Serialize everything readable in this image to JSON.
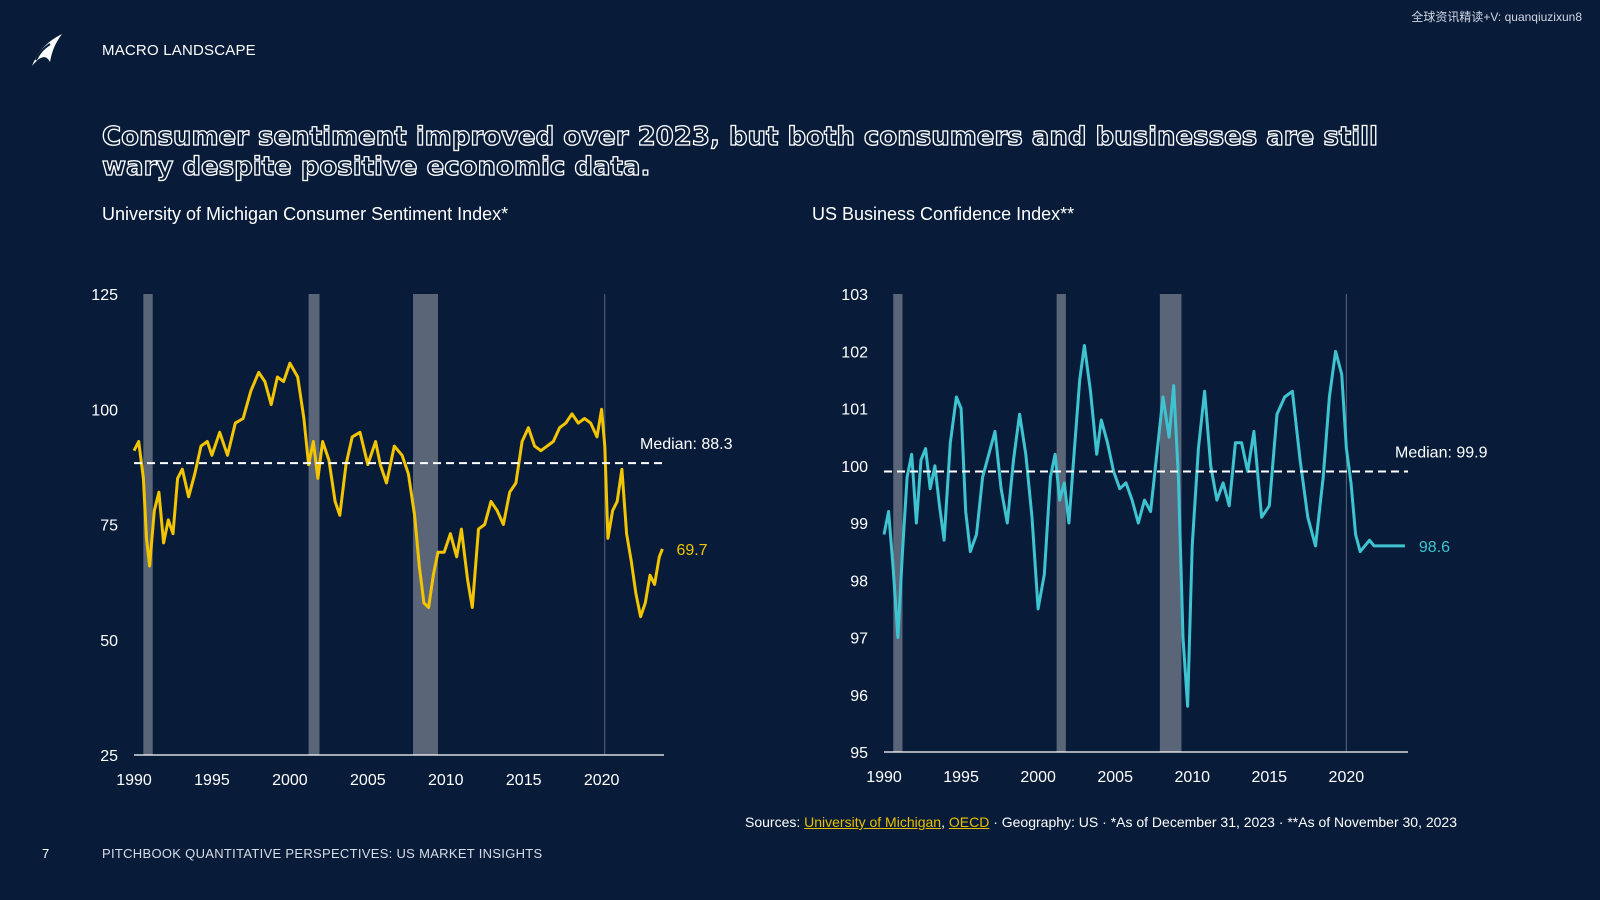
{
  "header": {
    "section": "MACRO LANDSCAPE",
    "watermark": "全球资讯精读+V: quanqiuzixun8"
  },
  "headline": "Consumer sentiment improved over 2023, but both consumers and businesses are still wary despite positive economic data.",
  "chart_data": [
    {
      "type": "line",
      "title": "University of Michigan Consumer Sentiment Index*",
      "color": "#f2c500",
      "xlim": [
        1990,
        2024
      ],
      "ylim": [
        25,
        125
      ],
      "yticks": [
        25,
        50,
        75,
        100,
        125
      ],
      "xticks": [
        1990,
        1995,
        2000,
        2005,
        2010,
        2015,
        2020
      ],
      "median": 88.3,
      "median_label": "Median: 88.3",
      "last_value_label": "69.7",
      "recessions": [
        [
          1990.6,
          1991.2
        ],
        [
          2001.2,
          2001.9
        ],
        [
          2007.9,
          2009.5
        ]
      ],
      "vline": 2020.2,
      "series": [
        {
          "x": [
            1990.0,
            1990.3,
            1990.6,
            1990.8,
            1991.0,
            1991.3,
            1991.6,
            1991.9,
            1992.2,
            1992.5,
            1992.8,
            1993.1,
            1993.5,
            1993.9,
            1994.3,
            1994.7,
            1995.0,
            1995.5,
            1996.0,
            1996.5,
            1997.0,
            1997.5,
            1998.0,
            1998.4,
            1998.8,
            1999.2,
            1999.6,
            2000.0,
            2000.5,
            2000.9,
            2001.2,
            2001.5,
            2001.8,
            2002.1,
            2002.5,
            2002.9,
            2003.2,
            2003.6,
            2004.0,
            2004.5,
            2005.0,
            2005.5,
            2005.8,
            2006.2,
            2006.7,
            2007.2,
            2007.6,
            2008.0,
            2008.3,
            2008.6,
            2008.9,
            2009.2,
            2009.5,
            2009.9,
            2010.3,
            2010.7,
            2011.0,
            2011.4,
            2011.7,
            2012.1,
            2012.5,
            2012.9,
            2013.3,
            2013.7,
            2014.1,
            2014.5,
            2014.9,
            2015.3,
            2015.7,
            2016.1,
            2016.5,
            2016.9,
            2017.3,
            2017.7,
            2018.1,
            2018.5,
            2018.9,
            2019.3,
            2019.7,
            2020.0,
            2020.2,
            2020.4,
            2020.7,
            2021.0,
            2021.3,
            2021.6,
            2021.9,
            2022.2,
            2022.5,
            2022.8,
            2023.1,
            2023.4,
            2023.7,
            2023.9
          ],
          "y": [
            91,
            93,
            85,
            72,
            66,
            78,
            82,
            71,
            76,
            73,
            85,
            87,
            81,
            86,
            92,
            93,
            90,
            95,
            90,
            97,
            98,
            104,
            108,
            106,
            101,
            107,
            106,
            110,
            107,
            98,
            88,
            93,
            85,
            93,
            89,
            80,
            77,
            88,
            94,
            95,
            88,
            93,
            88,
            84,
            92,
            90,
            86,
            77,
            66,
            58,
            57,
            64,
            69,
            69,
            73,
            68,
            74,
            63,
            57,
            74,
            75,
            80,
            78,
            75,
            82,
            84,
            93,
            96,
            92,
            91,
            92,
            93,
            96,
            97,
            99,
            97,
            98,
            97,
            94,
            100,
            92,
            72,
            78,
            80,
            87,
            73,
            67,
            60,
            55,
            58,
            64,
            62,
            68,
            69.7
          ]
        }
      ]
    },
    {
      "type": "line",
      "title": "US Business Confidence Index**",
      "color": "#3ec4d0",
      "xlim": [
        1990,
        2024
      ],
      "ylim": [
        95,
        103
      ],
      "yticks": [
        95,
        96,
        97,
        98,
        99,
        100,
        101,
        102,
        103
      ],
      "xticks": [
        1990,
        1995,
        2000,
        2005,
        2010,
        2015,
        2020
      ],
      "median": 99.9,
      "median_label": "Median: 99.9",
      "last_value_label": "98.6",
      "recessions": [
        [
          1990.6,
          1991.2
        ],
        [
          2001.2,
          2001.8
        ],
        [
          2007.9,
          2009.3
        ]
      ],
      "vline": 2020.0,
      "series": [
        {
          "x": [
            1990.0,
            1990.3,
            1990.6,
            1990.9,
            1991.2,
            1991.5,
            1991.8,
            1992.1,
            1992.4,
            1992.7,
            1993.0,
            1993.3,
            1993.6,
            1993.9,
            1994.3,
            1994.7,
            1995.0,
            1995.3,
            1995.6,
            1996.0,
            1996.4,
            1996.8,
            1997.2,
            1997.6,
            1998.0,
            1998.4,
            1998.8,
            1999.2,
            1999.6,
            2000.0,
            2000.4,
            2000.8,
            2001.1,
            2001.4,
            2001.7,
            2002.0,
            2002.3,
            2002.7,
            2003.0,
            2003.4,
            2003.8,
            2004.1,
            2004.5,
            2004.9,
            2005.3,
            2005.7,
            2006.1,
            2006.5,
            2006.9,
            2007.3,
            2007.7,
            2008.1,
            2008.5,
            2008.8,
            2009.1,
            2009.4,
            2009.7,
            2010.0,
            2010.4,
            2010.8,
            2011.2,
            2011.6,
            2012.0,
            2012.4,
            2012.8,
            2013.2,
            2013.6,
            2014.0,
            2014.5,
            2015.0,
            2015.5,
            2016.0,
            2016.5,
            2017.0,
            2017.5,
            2018.0,
            2018.5,
            2018.9,
            2019.3,
            2019.7,
            2020.0,
            2020.3,
            2020.6,
            2020.9,
            2021.2,
            2021.5,
            2021.8,
            2022.1,
            2022.5,
            2022.9,
            2023.3,
            2023.6,
            2023.8
          ],
          "y": [
            98.8,
            99.2,
            98.2,
            97.0,
            98.5,
            99.8,
            100.2,
            99.0,
            100.1,
            100.3,
            99.6,
            100.0,
            99.3,
            98.7,
            100.4,
            101.2,
            101.0,
            99.2,
            98.5,
            98.8,
            99.8,
            100.2,
            100.6,
            99.6,
            99.0,
            100.1,
            100.9,
            100.2,
            99.1,
            97.5,
            98.1,
            99.8,
            100.2,
            99.4,
            99.7,
            99.0,
            100.1,
            101.5,
            102.1,
            101.3,
            100.2,
            100.8,
            100.4,
            99.9,
            99.6,
            99.7,
            99.4,
            99.0,
            99.4,
            99.2,
            100.2,
            101.2,
            100.5,
            101.4,
            99.8,
            97.0,
            95.8,
            98.6,
            100.3,
            101.3,
            100.0,
            99.4,
            99.7,
            99.3,
            100.4,
            100.4,
            99.9,
            100.6,
            99.1,
            99.3,
            100.9,
            101.2,
            101.3,
            100.1,
            99.1,
            98.6,
            99.8,
            101.2,
            102.0,
            101.6,
            100.3,
            99.7,
            98.8,
            98.5,
            98.6,
            98.7,
            98.6,
            98.6,
            98.6,
            98.6,
            98.6,
            98.6,
            98.6
          ]
        }
      ]
    }
  ],
  "sources": {
    "prefix": "Sources: ",
    "link1": "University of Michigan",
    "comma": ", ",
    "link2": "OECD",
    "rest": " · Geography: US · *As of December 31, 2023 · **As of November 30, 2023"
  },
  "footer": {
    "page_number": "7",
    "publication": "PITCHBOOK QUANTITATIVE PERSPECTIVES: US MARKET INSIGHTS"
  },
  "colors": {
    "background": "#081c3a",
    "recession_band": "#5a6678",
    "accent_yellow": "#f2c500",
    "accent_teal": "#3ec4d0"
  }
}
